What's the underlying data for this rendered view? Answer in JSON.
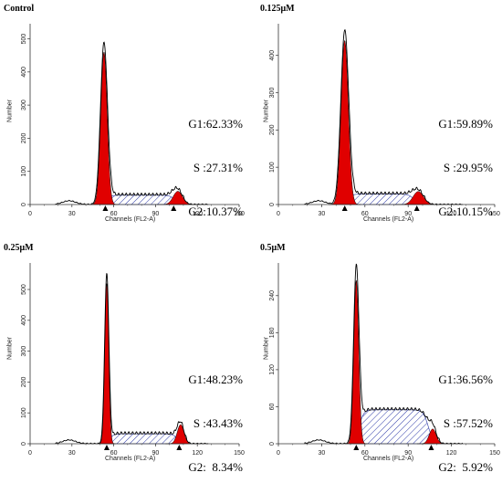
{
  "colors": {
    "g_fill": "#e00000",
    "s_hatch": "#2d3aa8",
    "axis": "#333333",
    "trace": "#000000"
  },
  "chart_data": [
    {
      "type": "area",
      "title": "Control",
      "xlabel": "Channels (FL2-A)",
      "ylabel": "Number",
      "xlim": [
        0,
        150
      ],
      "ylim": [
        0,
        540
      ],
      "xticks": [
        0,
        30,
        60,
        90,
        120,
        150
      ],
      "yticks": [
        0,
        100,
        200,
        300,
        400,
        500
      ],
      "g1_peak": {
        "x": 53,
        "height": 460,
        "sigma": 2.3
      },
      "g2_peak": {
        "x": 106,
        "height": 40,
        "sigma": 3.3
      },
      "s_phase": {
        "from": 55,
        "to": 104,
        "height": 28
      },
      "markers": [
        54,
        103
      ],
      "stats": {
        "g1": "G1:62.33%",
        "s": "S :27.31%",
        "g2": "G2:10.37%"
      }
    },
    {
      "type": "area",
      "title": "0.125μM",
      "xlabel": "Channels (FL2-A)",
      "ylabel": "Number",
      "xlim": [
        0,
        150
      ],
      "ylim": [
        0,
        480
      ],
      "xticks": [
        0,
        30,
        60,
        90,
        120,
        150
      ],
      "yticks": [
        0,
        100,
        200,
        300,
        400
      ],
      "g1_peak": {
        "x": 46,
        "height": 440,
        "sigma": 2.5
      },
      "g2_peak": {
        "x": 97,
        "height": 35,
        "sigma": 3.6
      },
      "s_phase": {
        "from": 48,
        "to": 94,
        "height": 28
      },
      "markers": [
        46,
        96
      ],
      "stats": {
        "g1": "G1:59.89%",
        "s": "S :29.95%",
        "g2": "G2:10.15%"
      }
    },
    {
      "type": "area",
      "title": "0.25μM",
      "xlabel": "Channels (FL2-A)",
      "ylabel": "Number",
      "xlim": [
        0,
        150
      ],
      "ylim": [
        0,
        580
      ],
      "xticks": [
        0,
        30,
        60,
        90,
        120,
        150
      ],
      "yticks": [
        0,
        100,
        200,
        300,
        400,
        500
      ],
      "g1_peak": {
        "x": 55,
        "height": 520,
        "sigma": 1.4
      },
      "g2_peak": {
        "x": 108,
        "height": 62,
        "sigma": 2.4
      },
      "s_phase": {
        "from": 57,
        "to": 106,
        "height": 32
      },
      "markers": [
        55,
        107
      ],
      "stats": {
        "g1": "G1:48.23%",
        "s": "S :43.43%",
        "g2": "G2:  8.34%"
      }
    },
    {
      "type": "area",
      "title": "0.5μM",
      "xlabel": "Channels (FL2-A)",
      "ylabel": "Number",
      "xlim": [
        0,
        150
      ],
      "ylim": [
        0,
        290
      ],
      "xticks": [
        0,
        30,
        60,
        90,
        120,
        150
      ],
      "yticks": [
        0,
        60,
        120,
        180,
        240
      ],
      "g1_peak": {
        "x": 54,
        "height": 265,
        "sigma": 1.7
      },
      "g2_peak": {
        "x": 107,
        "height": 24,
        "sigma": 2.4
      },
      "s_phase": {
        "from": 56,
        "to": 104,
        "height": 55
      },
      "markers": [
        54,
        106
      ],
      "stats": {
        "g1": "G1:36.56%",
        "s": "S :57.52%",
        "g2": "G2:  5.92%"
      }
    }
  ]
}
